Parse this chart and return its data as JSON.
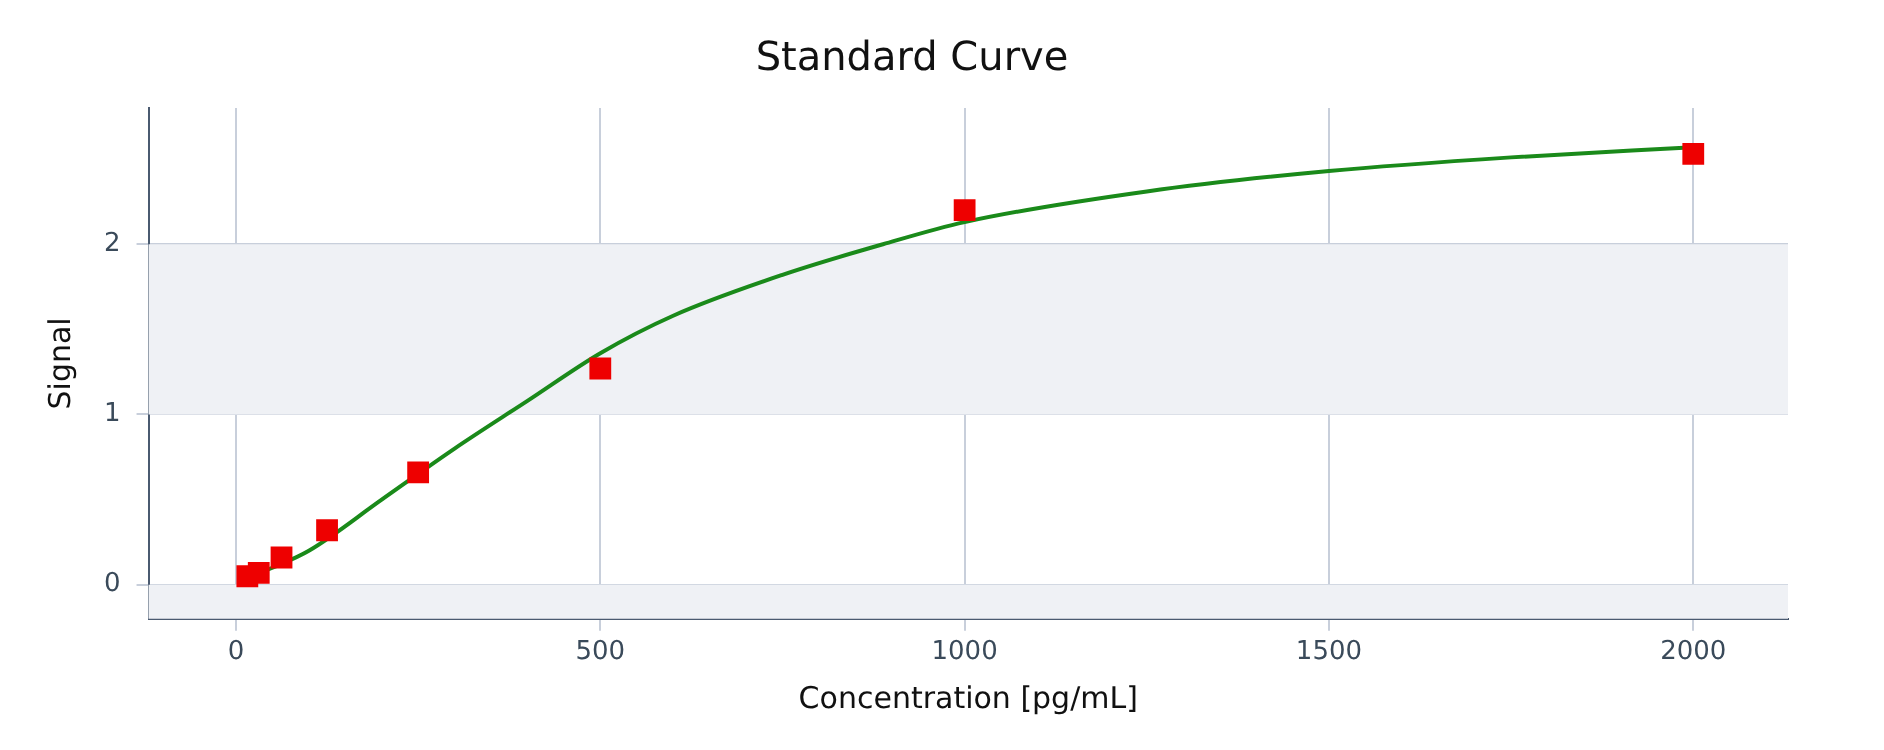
{
  "chart_data": {
    "type": "scatter",
    "title": "Standard Curve",
    "xlabel": "Concentration [pg/mL]",
    "ylabel": "Signal",
    "xlim": [
      -120,
      2130
    ],
    "xticks": [
      0,
      500,
      1000,
      1500,
      2000
    ],
    "ylim": [
      -0.2,
      2.8
    ],
    "yticks": [
      0,
      1,
      2
    ],
    "grid": true,
    "legend": false,
    "bands": [
      {
        "axis": "y",
        "from": -0.2,
        "to": 0,
        "color": "#eff1f5"
      },
      {
        "axis": "y",
        "from": 1,
        "to": 2,
        "color": "#eff1f5"
      }
    ],
    "series": [
      {
        "type": "line",
        "color": "#1a8a1a",
        "marker": "none",
        "x": [
          15.6,
          50,
          100,
          200,
          300,
          400,
          500,
          600,
          750,
          888,
          1000,
          1250,
          1500,
          1750,
          2000
        ],
        "values": [
          0.04,
          0.1,
          0.2,
          0.5,
          0.8,
          1.08,
          1.36,
          1.58,
          1.82,
          2.0,
          2.13,
          2.31,
          2.43,
          2.51,
          2.57
        ]
      },
      {
        "color": "#ee0000",
        "marker": "square",
        "x": [
          15.6,
          31.25,
          62.5,
          125,
          250,
          500,
          1000,
          2000
        ],
        "values": [
          0.05,
          0.07,
          0.16,
          0.32,
          0.66,
          1.27,
          2.2,
          2.53
        ]
      }
    ]
  }
}
